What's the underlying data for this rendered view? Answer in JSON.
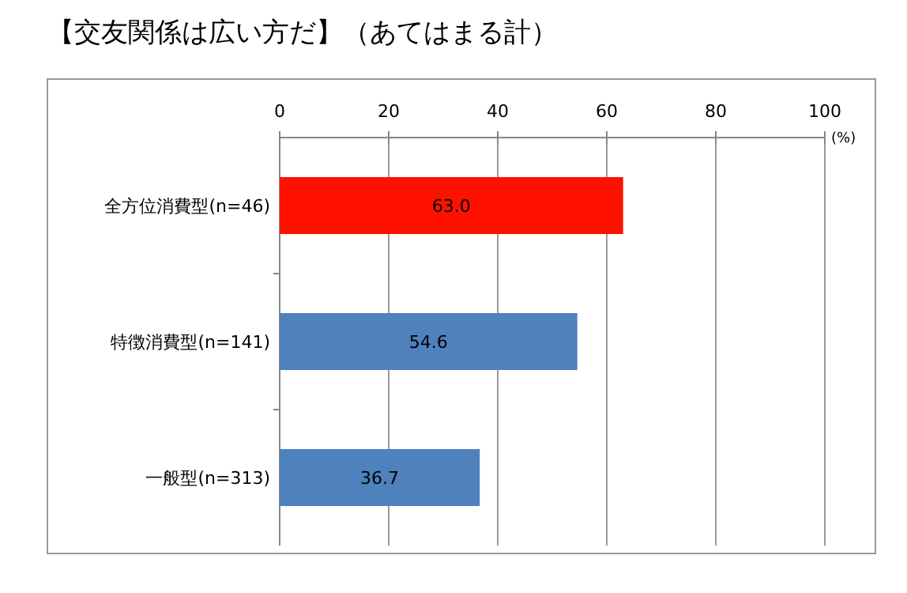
{
  "chart_data": {
    "type": "bar",
    "orientation": "horizontal",
    "title": "【交友関係は広い方だ】（あてはまる計）",
    "xlabel": "(%)",
    "categories": [
      "全方位消費型(n=46)",
      "特徴消費型(n=141)",
      "一般型(n=313)"
    ],
    "values": [
      63.0,
      54.6,
      36.7
    ],
    "colors": [
      "#ff1100",
      "#4f81bd",
      "#4f81bd"
    ],
    "value_labels": [
      "63.0",
      "54.6",
      "36.7"
    ],
    "xlim": [
      0,
      100
    ],
    "xticks": [
      0,
      20,
      40,
      60,
      80,
      100
    ],
    "grid": "x"
  }
}
